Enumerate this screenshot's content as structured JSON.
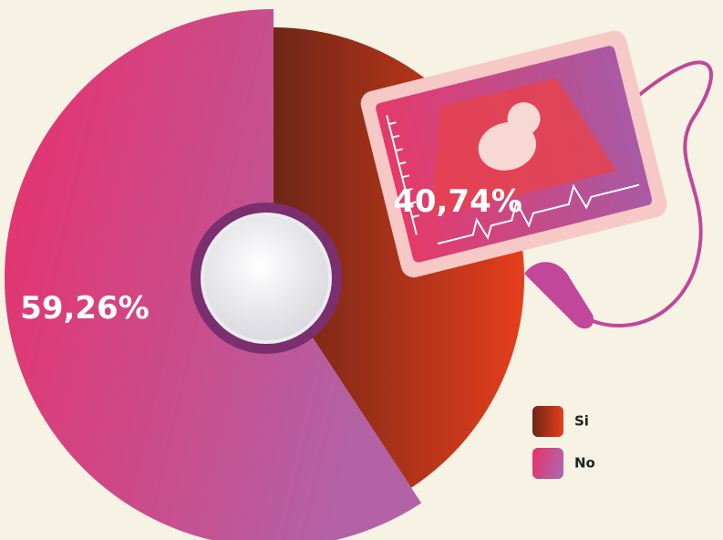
{
  "chart_data": {
    "type": "pie",
    "categories": [
      "Si",
      "No"
    ],
    "values": [
      40.74,
      59.26
    ],
    "value_labels": [
      "40,74%",
      "59,26%"
    ],
    "colors": [
      "#e63e1c",
      "#b362a6"
    ]
  }
}
